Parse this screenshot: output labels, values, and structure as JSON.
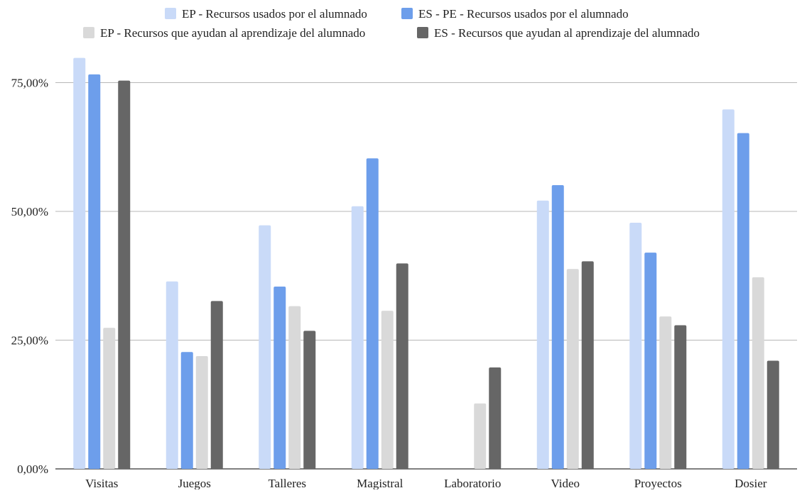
{
  "chart_data": {
    "type": "bar",
    "categories": [
      "Visitas",
      "Juegos",
      "Talleres",
      "Magistral",
      "Laboratorio",
      "Video",
      "Proyectos",
      "Dosier"
    ],
    "series": [
      {
        "name": "EP - Recursos usados por el alumnado",
        "color": "#c9daf8",
        "values": [
          79.8,
          36.4,
          47.3,
          51.0,
          0,
          52.1,
          47.8,
          69.8
        ]
      },
      {
        "name": "ES - PE - Recursos usados por el alumnado",
        "color": "#6d9eeb",
        "values": [
          76.6,
          22.7,
          35.4,
          60.3,
          0,
          55.1,
          42.0,
          65.2
        ]
      },
      {
        "name": "EP - Recursos que ayudan al aprendizaje del alumnado",
        "color": "#d9d9d9",
        "values": [
          27.4,
          21.9,
          31.6,
          30.7,
          12.7,
          38.8,
          29.6,
          37.2
        ]
      },
      {
        "name": "ES - Recursos que ayudan al aprendizaje del alumnado",
        "color": "#666666",
        "values": [
          75.4,
          32.6,
          26.8,
          39.9,
          19.7,
          40.3,
          27.9,
          21.0
        ]
      }
    ],
    "y_ticks": [
      {
        "value": 0,
        "label": "0,00%"
      },
      {
        "value": 25,
        "label": "25,00%"
      },
      {
        "value": 50,
        "label": "50,00%"
      },
      {
        "value": 75,
        "label": "75,00%"
      }
    ],
    "ylim": [
      0,
      75
    ],
    "grid": true,
    "legend_position": "top",
    "title": "",
    "xlabel": "",
    "ylabel": ""
  }
}
